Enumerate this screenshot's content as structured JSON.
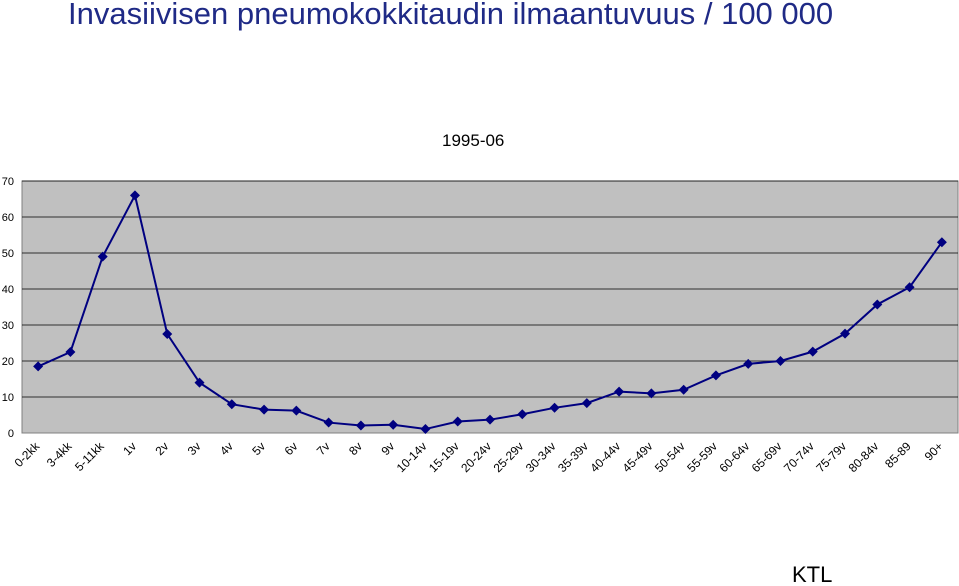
{
  "title": "Invasiivisen pneumokokkitaudin ilmaantuvuus / 100 000",
  "footer": "KTL",
  "colors": {
    "title": "#1f2a86",
    "line": "#000080",
    "plot_background": "#c0c0c0",
    "gridline": "#000000"
  },
  "chart_data": {
    "type": "line",
    "title": "1995-06",
    "xlabel": "",
    "ylabel": "",
    "categories": [
      "0-2kk",
      "3-4kk",
      "5-11kk",
      "1v",
      "2v",
      "3v",
      "4v",
      "5v",
      "6v",
      "7v",
      "8v",
      "9v",
      "10-14v",
      "15-19v",
      "20-24v",
      "25-29v",
      "30-34v",
      "35-39v",
      "40-44v",
      "45-49v",
      "50-54v",
      "55-59v",
      "60-64v",
      "65-69v",
      "70-74v",
      "75-79v",
      "80-84v",
      "85-89",
      "90+"
    ],
    "values": [
      18.5,
      22.5,
      49,
      66,
      27.5,
      14,
      8,
      6.5,
      6.2,
      2.9,
      2.1,
      2.3,
      1.1,
      3.2,
      3.7,
      5.2,
      7,
      8.3,
      11.5,
      11,
      12,
      16,
      19.2,
      20,
      22.6,
      27.6,
      35.7,
      40.5,
      53
    ],
    "ylim": [
      0,
      70
    ],
    "yticks": [
      0,
      10,
      20,
      30,
      40,
      50,
      60,
      70
    ],
    "grid": true,
    "legend": "none",
    "marker": "diamond"
  }
}
